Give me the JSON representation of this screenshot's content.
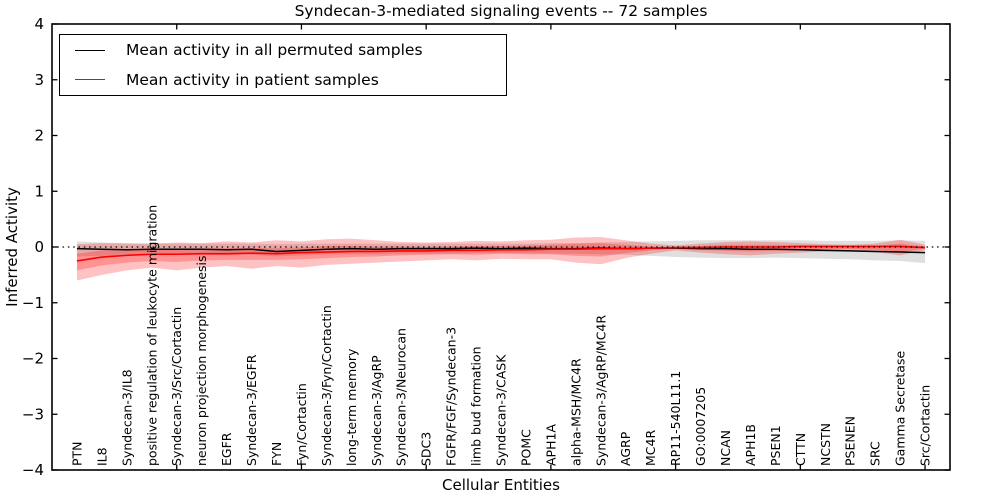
{
  "chart_data": {
    "type": "line",
    "title": "Syndecan-3-mediated signaling events -- 72 samples",
    "xlabel": "Cellular Entities",
    "ylabel": "Inferred Activity",
    "ylim": [
      -4,
      4
    ],
    "grid": false,
    "zero_reference_line": true,
    "legend": {
      "position": "upper-left",
      "entries": [
        {
          "label": "Mean activity in all permuted samples",
          "color": "#000000"
        },
        {
          "label": "Mean activity in patient samples",
          "color": "#ff0000"
        }
      ]
    },
    "yticks": {
      "values": [
        -4,
        -3,
        -2,
        -1,
        0,
        1,
        2,
        3,
        4
      ],
      "labels": [
        "−4",
        "−3",
        "−2",
        "−1",
        "0",
        "1",
        "2",
        "3",
        "4"
      ]
    },
    "xtick_positions": [
      5,
      10,
      15,
      20,
      25,
      30,
      35
    ],
    "categories": [
      "PTN",
      "IL8",
      "Syndecan-3/IL8",
      "positive regulation of leukocyte migration",
      "Syndecan-3/Src/Cortactin",
      "neuron projection morphogenesis",
      "EGFR",
      "Syndecan-3/EGFR",
      "FYN",
      "Fyn/Cortactin",
      "Syndecan-3/Fyn/Cortactin",
      "long-term memory",
      "Syndecan-3/AgRP",
      "Syndecan-3/Neurocan",
      "SDC3",
      "FGFR/FGF/Syndecan-3",
      "limb bud formation",
      "Syndecan-3/CASK",
      "POMC",
      "APH1A",
      "alpha-MSH/MC4R",
      "Syndecan-3/AgRP/MC4R",
      "AGRP",
      "MC4R",
      "RP11-540L11.1",
      "GO:0007205",
      "NCAN",
      "APH1B",
      "PSEN1",
      "CTTN",
      "NCSTN",
      "PSENEN",
      "SRC",
      "Gamma Secretase",
      "Src/Cortactin"
    ],
    "series": [
      {
        "name": "permuted_mean",
        "values": [
          -0.03,
          -0.04,
          -0.05,
          -0.04,
          -0.04,
          -0.04,
          -0.05,
          -0.04,
          -0.08,
          -0.06,
          -0.04,
          -0.03,
          -0.04,
          -0.03,
          -0.03,
          -0.03,
          -0.02,
          -0.03,
          -0.02,
          -0.03,
          -0.03,
          -0.02,
          -0.03,
          -0.02,
          -0.02,
          -0.03,
          -0.03,
          -0.04,
          -0.04,
          -0.05,
          -0.06,
          -0.07,
          -0.08,
          -0.09,
          -0.1
        ]
      },
      {
        "name": "patient_mean",
        "values": [
          -0.25,
          -0.18,
          -0.15,
          -0.13,
          -0.13,
          -0.12,
          -0.12,
          -0.11,
          -0.12,
          -0.1,
          -0.09,
          -0.08,
          -0.08,
          -0.07,
          -0.07,
          -0.06,
          -0.06,
          -0.05,
          -0.05,
          -0.04,
          -0.04,
          -0.03,
          -0.03,
          -0.02,
          -0.01,
          -0.01,
          0.0,
          0.0,
          0.0,
          0.01,
          0.01,
          0.01,
          0.01,
          0.01,
          -0.01
        ]
      },
      {
        "name": "permuted_band_upper",
        "values": [
          0.1,
          0.08,
          0.07,
          0.06,
          0.06,
          0.06,
          0.06,
          0.06,
          0.05,
          0.06,
          0.06,
          0.06,
          0.06,
          0.06,
          0.06,
          0.06,
          0.06,
          0.06,
          0.06,
          0.07,
          0.07,
          0.08,
          0.09,
          0.1,
          0.11,
          0.12,
          0.12,
          0.12,
          0.12,
          0.12,
          0.11,
          0.11,
          0.11,
          0.12,
          0.11
        ]
      },
      {
        "name": "permuted_band_lower",
        "values": [
          -0.17,
          -0.16,
          -0.15,
          -0.14,
          -0.14,
          -0.14,
          -0.15,
          -0.14,
          -0.17,
          -0.15,
          -0.13,
          -0.13,
          -0.13,
          -0.12,
          -0.12,
          -0.12,
          -0.11,
          -0.11,
          -0.11,
          -0.12,
          -0.12,
          -0.13,
          -0.14,
          -0.16,
          -0.18,
          -0.19,
          -0.2,
          -0.2,
          -0.19,
          -0.2,
          -0.21,
          -0.22,
          -0.24,
          -0.25,
          -0.29
        ]
      },
      {
        "name": "patient_outer_upper",
        "values": [
          0.05,
          0.07,
          0.06,
          0.06,
          0.08,
          0.07,
          0.1,
          0.08,
          0.12,
          0.1,
          0.14,
          0.15,
          0.12,
          0.09,
          0.08,
          0.09,
          0.11,
          0.1,
          0.12,
          0.13,
          0.17,
          0.18,
          0.12,
          0.06,
          0.03,
          0.06,
          0.09,
          0.1,
          0.09,
          0.07,
          0.05,
          0.04,
          0.06,
          0.13,
          0.04
        ]
      },
      {
        "name": "patient_outer_lower",
        "values": [
          -0.6,
          -0.5,
          -0.42,
          -0.37,
          -0.42,
          -0.37,
          -0.34,
          -0.39,
          -0.34,
          -0.37,
          -0.32,
          -0.3,
          -0.28,
          -0.26,
          -0.24,
          -0.22,
          -0.24,
          -0.21,
          -0.22,
          -0.22,
          -0.28,
          -0.31,
          -0.2,
          -0.12,
          -0.06,
          -0.1,
          -0.13,
          -0.15,
          -0.12,
          -0.1,
          -0.08,
          -0.07,
          -0.09,
          -0.15,
          -0.06
        ]
      },
      {
        "name": "patient_inner_upper",
        "values": [
          -0.12,
          -0.06,
          -0.05,
          -0.04,
          -0.03,
          -0.03,
          -0.02,
          -0.02,
          -0.02,
          -0.01,
          0.02,
          0.02,
          0.01,
          0.01,
          0.0,
          0.01,
          0.02,
          0.02,
          0.03,
          0.04,
          0.06,
          0.07,
          0.04,
          0.01,
          0.0,
          0.02,
          0.04,
          0.04,
          0.04,
          0.03,
          0.02,
          0.01,
          0.02,
          0.06,
          0.01
        ]
      },
      {
        "name": "patient_inner_lower",
        "values": [
          -0.42,
          -0.33,
          -0.28,
          -0.25,
          -0.27,
          -0.24,
          -0.23,
          -0.23,
          -0.23,
          -0.22,
          -0.2,
          -0.18,
          -0.17,
          -0.15,
          -0.14,
          -0.13,
          -0.14,
          -0.12,
          -0.13,
          -0.13,
          -0.16,
          -0.17,
          -0.11,
          -0.06,
          -0.03,
          -0.05,
          -0.07,
          -0.08,
          -0.07,
          -0.06,
          -0.04,
          -0.04,
          -0.05,
          -0.09,
          -0.03
        ]
      }
    ],
    "colors": {
      "permuted_line": "#000000",
      "patient_line": "#ff0000",
      "permuted_band": "rgba(110,110,110,0.22)",
      "patient_band": "rgba(255,0,0,0.24)",
      "zero_line": "#000000"
    }
  }
}
